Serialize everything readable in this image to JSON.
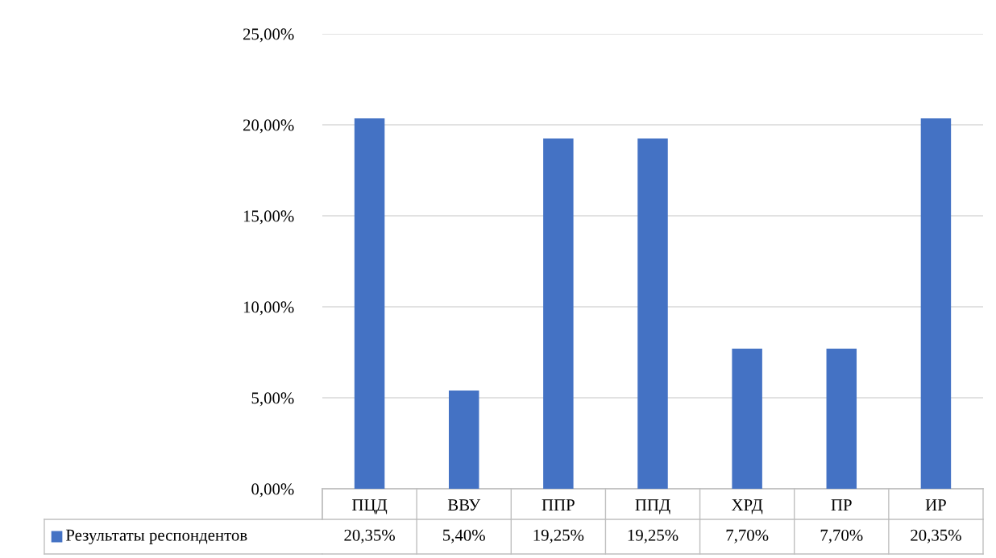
{
  "chart_data": {
    "type": "bar",
    "categories": [
      "ПЦД",
      "ВВУ",
      "ППР",
      "ППД",
      "ХРД",
      "ПР",
      "ИР"
    ],
    "series": [
      {
        "name": "Результаты респондентов",
        "color": "#4472c4",
        "values": [
          20.35,
          5.4,
          19.25,
          19.25,
          7.7,
          7.7,
          20.35
        ],
        "value_labels": [
          "20,35%",
          "5,40%",
          "19,25%",
          "19,25%",
          "7,70%",
          "7,70%",
          "20,35%"
        ]
      }
    ],
    "ylim": [
      0,
      25
    ],
    "yticks": [
      {
        "value": 0,
        "label": "0,00%"
      },
      {
        "value": 5,
        "label": "5,00%"
      },
      {
        "value": 10,
        "label": "10,00%"
      },
      {
        "value": 15,
        "label": "15,00%"
      },
      {
        "value": 20,
        "label": "20,00%"
      },
      {
        "value": 25,
        "label": "25,00%"
      }
    ],
    "grid": "y",
    "legend": "bottom"
  }
}
